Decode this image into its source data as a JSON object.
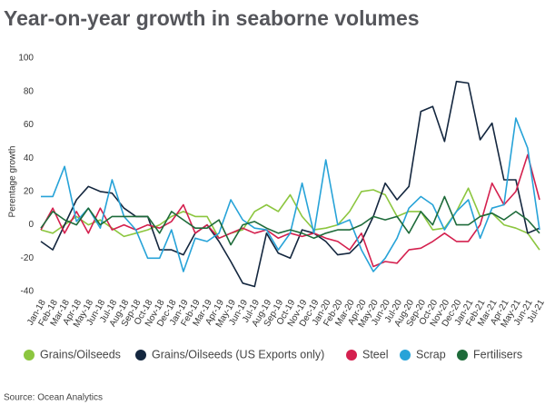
{
  "chart_data": {
    "type": "line",
    "title": "Year-on-year growth in seaborne volumes",
    "y_label": "Perentage growth",
    "source": "Source: Ocean Analytics",
    "categories": [
      "Jan-18",
      "Feb-18",
      "Mar-18",
      "Apr-18",
      "May-18",
      "Jun-18",
      "Jul-18",
      "Aug-18",
      "Sep-18",
      "Oct-18",
      "Nov-18",
      "Dec-18",
      "Jan-19",
      "Feb-19",
      "Mar-19",
      "Apr-19",
      "May-19",
      "Jun-19",
      "Jul-19",
      "Aug-19",
      "Sep-19",
      "Oct-19",
      "Nov-19",
      "Dec-19",
      "Jan-20",
      "Feb-20",
      "Mar-20",
      "Apr-20",
      "May-20",
      "Jun-20",
      "Jul-20",
      "Aug-20",
      "Sep-20",
      "Oct-20",
      "Nov-20",
      "Dec-20",
      "Jan-21",
      "Feb-21",
      "Mar-21",
      "Apr-21",
      "May-21",
      "Jun-21",
      "Jul-21"
    ],
    "ylim": [
      -40,
      100
    ],
    "yticks": [
      -40,
      -20,
      0,
      20,
      40,
      60,
      80,
      100
    ],
    "grid": false,
    "legend": "bottom",
    "series": [
      {
        "name": "Grains/Oilseeds",
        "color": "#8cc63f",
        "values": [
          -3,
          -5,
          0,
          5,
          0,
          3,
          -2,
          -7,
          -5,
          -3,
          0,
          5,
          8,
          5,
          5,
          -8,
          -5,
          -3,
          8,
          12,
          8,
          18,
          5,
          -3,
          -2,
          0,
          8,
          20,
          21,
          18,
          5,
          8,
          8,
          -3,
          -2,
          8,
          22,
          5,
          7,
          0,
          -2,
          -5,
          -15
        ]
      },
      {
        "name": "Grains/Oilseeds (US Exports only)",
        "color": "#14273f",
        "values": [
          -10,
          -15,
          0,
          15,
          23,
          20,
          19,
          10,
          5,
          5,
          -15,
          -15,
          -18,
          -5,
          0,
          -10,
          -22,
          -35,
          -37,
          -5,
          -17,
          -20,
          -3,
          -5,
          -10,
          -18,
          -17,
          -10,
          5,
          25,
          15,
          23,
          68,
          71,
          50,
          86,
          85,
          51,
          61,
          27,
          27,
          -5,
          -2
        ]
      },
      {
        "name": "Steel",
        "color": "#d4204e",
        "values": [
          -3,
          10,
          -5,
          8,
          -5,
          10,
          -3,
          0,
          -3,
          0,
          -2,
          2,
          12,
          -5,
          0,
          -8,
          -5,
          -2,
          -5,
          -3,
          -8,
          -5,
          -7,
          -5,
          -8,
          -10,
          -15,
          -5,
          -25,
          -22,
          -23,
          -15,
          -14,
          -10,
          -5,
          -10,
          -10,
          0,
          25,
          12,
          20,
          42,
          15
        ]
      },
      {
        "name": "Scrap",
        "color": "#27a3d8",
        "values": [
          17,
          17,
          35,
          2,
          10,
          -2,
          27,
          5,
          -3,
          -20,
          -20,
          -3,
          -28,
          -8,
          -10,
          -5,
          15,
          3,
          -2,
          -3,
          -15,
          -5,
          25,
          -5,
          39,
          0,
          3,
          -15,
          -28,
          -20,
          -8,
          10,
          17,
          12,
          -3,
          8,
          15,
          -8,
          10,
          12,
          64,
          46,
          -3
        ]
      },
      {
        "name": "Fertilisers",
        "color": "#1e6b3a",
        "values": [
          -2,
          8,
          3,
          0,
          10,
          0,
          5,
          5,
          5,
          5,
          -5,
          8,
          3,
          -2,
          -2,
          3,
          -12,
          0,
          2,
          -2,
          -5,
          -3,
          -5,
          -8,
          -5,
          -3,
          -3,
          0,
          5,
          3,
          5,
          -5,
          8,
          0,
          17,
          0,
          0,
          5,
          7,
          3,
          8,
          3,
          -5
        ]
      }
    ]
  }
}
